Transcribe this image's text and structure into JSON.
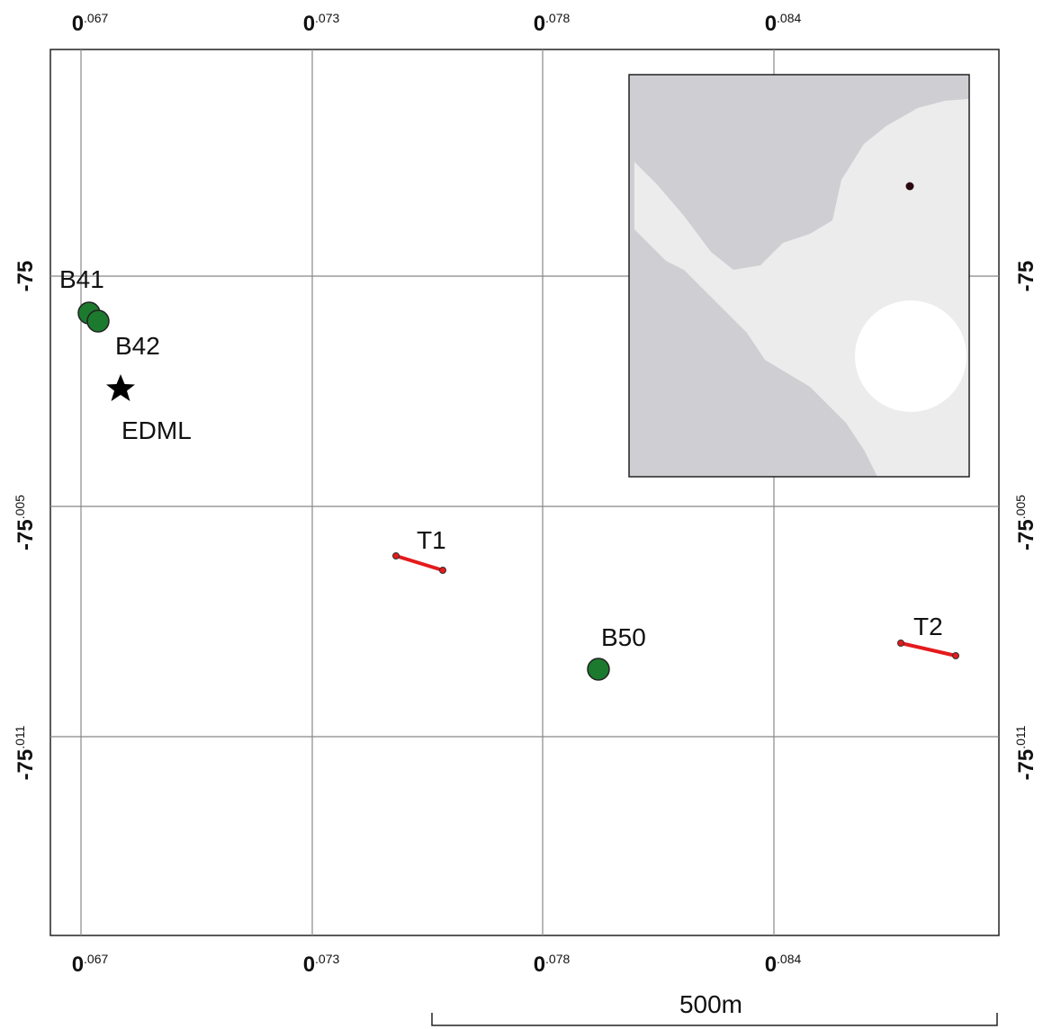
{
  "x_axis": {
    "ticks": [
      {
        "main": "0",
        "sup": ".067"
      },
      {
        "main": "0",
        "sup": ".073"
      },
      {
        "main": "0",
        "sup": ".078"
      },
      {
        "main": "0",
        "sup": ".084"
      }
    ]
  },
  "y_axis": {
    "ticks": [
      {
        "main": "-75"
      },
      {
        "main": "-75",
        "sup": ".005"
      },
      {
        "main": "-75",
        "sup": ".011"
      }
    ]
  },
  "sites": [
    {
      "label": "B41"
    },
    {
      "label": "B42"
    },
    {
      "label": "EDML"
    },
    {
      "label": "B50"
    }
  ],
  "transects": [
    {
      "label": "T1"
    },
    {
      "label": "T2"
    }
  ],
  "scale_bar": {
    "label": "500m"
  }
}
